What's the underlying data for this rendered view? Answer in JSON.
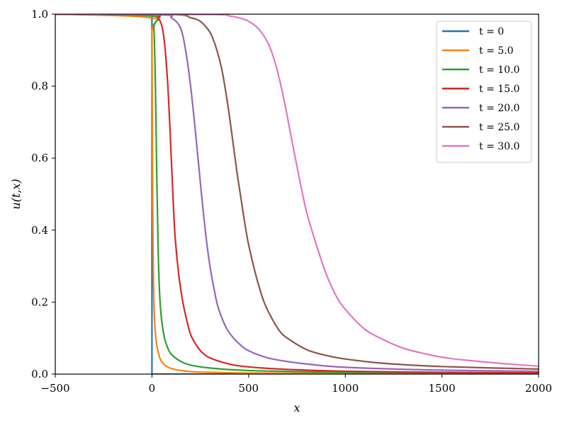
{
  "chart_data": {
    "type": "line",
    "title": "",
    "xlabel": "x",
    "ylabel": "u(t,x)",
    "xlim": [
      -500,
      2000
    ],
    "ylim": [
      0,
      1.0
    ],
    "xticks": [
      -500,
      0,
      500,
      1000,
      1500,
      2000
    ],
    "xtick_labels": [
      "−500",
      "0",
      "500",
      "1000",
      "1500",
      "2000"
    ],
    "yticks": [
      0.0,
      0.2,
      0.4,
      0.6,
      0.8,
      1.0
    ],
    "ytick_labels": [
      "0.0",
      "0.2",
      "0.4",
      "0.6",
      "0.8",
      "1.0"
    ],
    "grid": false,
    "legend_position": "top-right",
    "series": [
      {
        "name": "t = 0",
        "color": "#1f77b4",
        "x": [
          -500,
          0,
          0,
          2000
        ],
        "y": [
          1.0,
          1.0,
          0.0,
          0.0
        ]
      },
      {
        "name": "t = 5.0",
        "color": "#ff7f0e",
        "x": [
          -500,
          -5,
          0,
          2,
          5,
          10,
          20,
          35,
          50,
          80,
          120,
          200,
          300,
          500,
          1000,
          2000
        ],
        "y": [
          1.0,
          0.99,
          0.95,
          0.7,
          0.4,
          0.2,
          0.1,
          0.055,
          0.035,
          0.02,
          0.013,
          0.007,
          0.005,
          0.003,
          0.0015,
          0.0008
        ]
      },
      {
        "name": "t = 10.0",
        "color": "#2ca02c",
        "x": [
          -500,
          0,
          10,
          18,
          25,
          32,
          40,
          50,
          65,
          80,
          100,
          150,
          200,
          300,
          500,
          1000,
          2000
        ],
        "y": [
          1.0,
          0.995,
          0.96,
          0.8,
          0.55,
          0.35,
          0.22,
          0.15,
          0.1,
          0.075,
          0.055,
          0.035,
          0.025,
          0.017,
          0.01,
          0.005,
          0.0025
        ]
      },
      {
        "name": "t = 15.0",
        "color": "#d62728",
        "x": [
          -500,
          0,
          30,
          50,
          65,
          80,
          90,
          100,
          110,
          120,
          140,
          160,
          180,
          200,
          230,
          260,
          300,
          400,
          500,
          700,
          1000,
          1500,
          2000
        ],
        "y": [
          1.0,
          0.998,
          0.99,
          0.97,
          0.92,
          0.82,
          0.72,
          0.6,
          0.48,
          0.38,
          0.27,
          0.2,
          0.15,
          0.11,
          0.08,
          0.06,
          0.045,
          0.028,
          0.02,
          0.013,
          0.008,
          0.005,
          0.004
        ]
      },
      {
        "name": "t = 20.0",
        "color": "#9467bd",
        "x": [
          -500,
          50,
          100,
          140,
          160,
          180,
          200,
          220,
          240,
          260,
          280,
          300,
          320,
          340,
          370,
          400,
          450,
          500,
          600,
          700,
          800,
          1000,
          1500,
          2000
        ],
        "y": [
          1.0,
          0.998,
          0.99,
          0.97,
          0.94,
          0.88,
          0.8,
          0.7,
          0.59,
          0.48,
          0.38,
          0.3,
          0.24,
          0.19,
          0.145,
          0.115,
          0.085,
          0.065,
          0.045,
          0.035,
          0.028,
          0.019,
          0.011,
          0.008
        ]
      },
      {
        "name": "t = 25.0",
        "color": "#8c564b",
        "x": [
          -500,
          100,
          200,
          250,
          300,
          330,
          360,
          380,
          400,
          420,
          440,
          460,
          480,
          500,
          540,
          580,
          620,
          660,
          700,
          800,
          900,
          1000,
          1200,
          1500,
          2000
        ],
        "y": [
          1.0,
          0.999,
          0.99,
          0.98,
          0.95,
          0.91,
          0.85,
          0.79,
          0.72,
          0.64,
          0.56,
          0.49,
          0.42,
          0.36,
          0.27,
          0.2,
          0.155,
          0.12,
          0.1,
          0.068,
          0.052,
          0.042,
          0.03,
          0.021,
          0.014
        ]
      },
      {
        "name": "t = 30.0",
        "color": "#e377c2",
        "x": [
          -500,
          300,
          400,
          450,
          500,
          550,
          600,
          640,
          680,
          720,
          760,
          800,
          850,
          900,
          950,
          1000,
          1100,
          1200,
          1300,
          1400,
          1500,
          1600,
          1800,
          2000
        ],
        "y": [
          1.0,
          0.999,
          0.995,
          0.99,
          0.98,
          0.96,
          0.92,
          0.86,
          0.77,
          0.66,
          0.55,
          0.45,
          0.36,
          0.28,
          0.22,
          0.18,
          0.125,
          0.095,
          0.072,
          0.058,
          0.047,
          0.04,
          0.03,
          0.022
        ]
      }
    ]
  }
}
